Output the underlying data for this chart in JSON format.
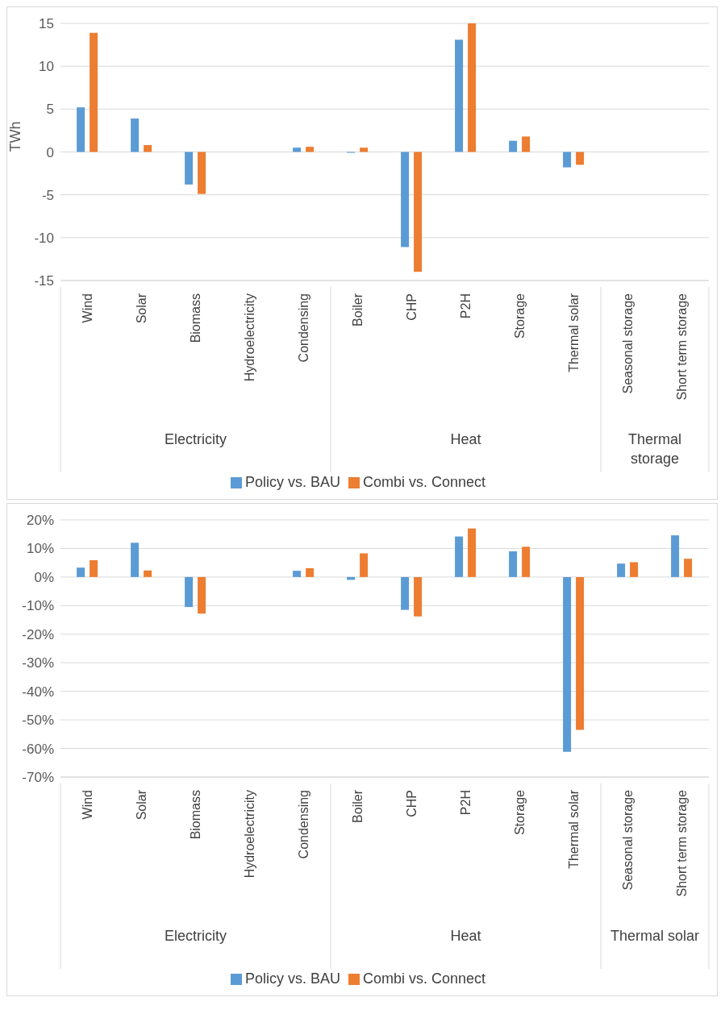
{
  "chart_data": [
    {
      "type": "bar",
      "ylabel": "TWh",
      "categories": [
        "Wind",
        "Solar",
        "Biomass",
        "Hydroelectricity",
        "Condensing",
        "Boiler",
        "CHP",
        "P2H",
        "Storage",
        "Thermal solar",
        "Seasonal storage",
        "Short term storage"
      ],
      "series": [
        {
          "name": "Policy vs. BAU",
          "color": "#5b9bd5",
          "values": [
            5.2,
            3.9,
            -3.8,
            0,
            0.5,
            -0.1,
            -11.1,
            13.1,
            1.3,
            -1.8,
            0,
            0
          ]
        },
        {
          "name": "Combi vs. Connect",
          "color": "#ed7d31",
          "values": [
            13.9,
            0.8,
            -4.9,
            0,
            0.6,
            0.5,
            -14.0,
            15.0,
            1.8,
            -1.5,
            0,
            0
          ]
        }
      ],
      "ylim": [
        -15,
        15
      ],
      "yticks": [
        -15,
        -10,
        -5,
        0,
        5,
        10,
        15
      ],
      "grid": "y",
      "legend": "bottom",
      "annotations": [
        "Electricity",
        "Heat",
        "Thermal storage"
      ]
    },
    {
      "type": "bar",
      "categories": [
        "Wind",
        "Solar",
        "Biomass",
        "Hydroelectricity",
        "Condensing",
        "Boiler",
        "CHP",
        "P2H",
        "Storage",
        "Thermal solar",
        "Seasonal storage",
        "Short term storage"
      ],
      "series": [
        {
          "name": "Policy vs. BAU",
          "color": "#5b9bd5",
          "values": [
            3.3,
            12,
            -10.5,
            0,
            2.2,
            -1,
            -11.5,
            14.2,
            9,
            -61.2,
            4.7,
            14.6
          ]
        },
        {
          "name": "Combi vs. Connect",
          "color": "#ed7d31",
          "values": [
            5.9,
            2.3,
            -12.8,
            0,
            3.1,
            8.3,
            -13.8,
            17,
            10.6,
            -53.5,
            5.2,
            6.4
          ]
        }
      ],
      "ylim": [
        -70,
        20
      ],
      "yticks": [
        {
          "value": -70,
          "label": "-70%"
        },
        {
          "value": -60,
          "label": "-60%"
        },
        {
          "value": -50,
          "label": "-50%"
        },
        {
          "value": -40,
          "label": "-40%"
        },
        {
          "value": -30,
          "label": "-30%"
        },
        {
          "value": -20,
          "label": "-20%"
        },
        {
          "value": -10,
          "label": "-10%"
        },
        {
          "value": 0,
          "label": "0%"
        },
        {
          "value": 10,
          "label": "10%"
        },
        {
          "value": 20,
          "label": "20%"
        }
      ],
      "grid": "y",
      "legend": "bottom",
      "annotations": [
        "Electricity",
        "Heat",
        "Thermal solar"
      ]
    }
  ]
}
